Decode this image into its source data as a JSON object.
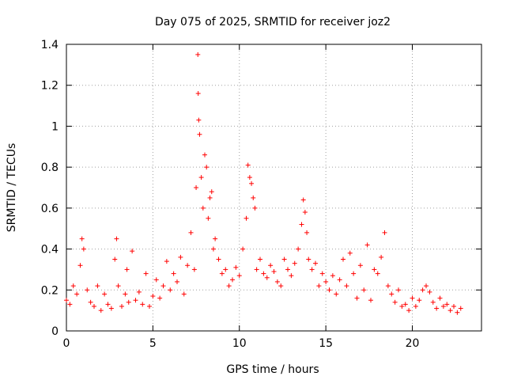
{
  "chart_data": {
    "type": "scatter",
    "title": "Day 075 of 2025, SRMTID for receiver joz2",
    "xlabel": "GPS time / hours",
    "ylabel": "SRMTID / TECUs",
    "xlim": [
      0,
      24
    ],
    "ylim": [
      0,
      1.4
    ],
    "xticks": [
      0,
      5,
      10,
      15,
      20
    ],
    "xtick_labels": [
      "0",
      "5",
      "10",
      "15",
      "20"
    ],
    "yticks": [
      0,
      0.2,
      0.4,
      0.6,
      0.8,
      1.0,
      1.2,
      1.4
    ],
    "ytick_labels": [
      "0",
      "0.2",
      "0.4",
      "0.6",
      "0.8",
      "1",
      "1.2",
      "1.4"
    ],
    "grid": true,
    "marker": "+",
    "marker_color": "#ff0000",
    "series": [
      {
        "name": "SRMTID",
        "x": [
          0.0,
          0.2,
          0.4,
          0.6,
          0.8,
          0.9,
          1.0,
          1.2,
          1.4,
          1.6,
          1.8,
          2.0,
          2.2,
          2.4,
          2.6,
          2.8,
          2.9,
          3.0,
          3.2,
          3.4,
          3.5,
          3.6,
          3.8,
          4.0,
          4.2,
          4.4,
          4.6,
          4.8,
          5.0,
          5.2,
          5.4,
          5.6,
          5.8,
          6.0,
          6.2,
          6.4,
          6.6,
          6.8,
          7.0,
          7.2,
          7.4,
          7.5,
          7.6,
          7.62,
          7.65,
          7.7,
          7.8,
          7.9,
          8.0,
          8.1,
          8.2,
          8.3,
          8.4,
          8.5,
          8.6,
          8.8,
          9.0,
          9.2,
          9.4,
          9.6,
          9.8,
          10.0,
          10.2,
          10.4,
          10.5,
          10.6,
          10.7,
          10.8,
          10.9,
          11.0,
          11.2,
          11.4,
          11.6,
          11.8,
          12.0,
          12.2,
          12.4,
          12.6,
          12.8,
          13.0,
          13.2,
          13.4,
          13.6,
          13.7,
          13.8,
          13.9,
          14.0,
          14.2,
          14.4,
          14.6,
          14.8,
          15.0,
          15.2,
          15.4,
          15.6,
          15.8,
          16.0,
          16.2,
          16.4,
          16.6,
          16.8,
          17.0,
          17.2,
          17.4,
          17.6,
          17.8,
          18.0,
          18.2,
          18.4,
          18.6,
          18.8,
          19.0,
          19.2,
          19.4,
          19.6,
          19.8,
          20.0,
          20.2,
          20.4,
          20.6,
          20.8,
          21.0,
          21.2,
          21.4,
          21.6,
          21.8,
          22.0,
          22.2,
          22.4,
          22.6,
          22.8
        ],
        "y": [
          0.15,
          0.13,
          0.22,
          0.18,
          0.32,
          0.45,
          0.4,
          0.2,
          0.14,
          0.12,
          0.22,
          0.1,
          0.18,
          0.13,
          0.11,
          0.35,
          0.45,
          0.22,
          0.12,
          0.18,
          0.3,
          0.14,
          0.39,
          0.15,
          0.19,
          0.13,
          0.28,
          0.12,
          0.17,
          0.25,
          0.16,
          0.22,
          0.34,
          0.2,
          0.28,
          0.24,
          0.36,
          0.18,
          0.32,
          0.48,
          0.3,
          0.7,
          1.35,
          1.16,
          1.03,
          0.96,
          0.75,
          0.6,
          0.86,
          0.8,
          0.55,
          0.65,
          0.68,
          0.4,
          0.45,
          0.35,
          0.28,
          0.3,
          0.22,
          0.25,
          0.31,
          0.27,
          0.4,
          0.55,
          0.81,
          0.75,
          0.72,
          0.65,
          0.6,
          0.3,
          0.35,
          0.28,
          0.26,
          0.32,
          0.29,
          0.24,
          0.22,
          0.35,
          0.3,
          0.27,
          0.33,
          0.4,
          0.52,
          0.64,
          0.58,
          0.48,
          0.35,
          0.3,
          0.33,
          0.22,
          0.28,
          0.24,
          0.2,
          0.27,
          0.18,
          0.25,
          0.35,
          0.22,
          0.38,
          0.28,
          0.16,
          0.32,
          0.2,
          0.42,
          0.15,
          0.3,
          0.28,
          0.36,
          0.48,
          0.22,
          0.18,
          0.14,
          0.2,
          0.12,
          0.13,
          0.1,
          0.16,
          0.12,
          0.15,
          0.2,
          0.22,
          0.19,
          0.14,
          0.11,
          0.16,
          0.12,
          0.13,
          0.1,
          0.12,
          0.09,
          0.11
        ]
      }
    ]
  }
}
